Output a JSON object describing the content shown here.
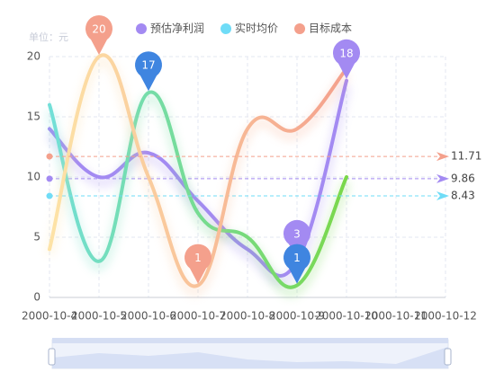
{
  "chart_data": {
    "type": "line",
    "unit_label": "单位：元",
    "categories": [
      "2000-10-4",
      "2000-10-5",
      "2000-10-6",
      "2000-10-7",
      "2000-10-8",
      "2000-10-9",
      "2000-10-10",
      "2000-10-11",
      "2000-10-12"
    ],
    "series": [
      {
        "name": "预估净利润",
        "color": "#a38af2",
        "mark_color": "#a38af2",
        "values": [
          14,
          10,
          12,
          8,
          4,
          3,
          18,
          null,
          null
        ],
        "average": 9.86
      },
      {
        "name": "实时均价",
        "color": "#6fdcf7",
        "mark_color": "#3f85e0",
        "gradient": [
          "#72dfd8",
          "#7ad84a"
        ],
        "values": [
          16,
          3,
          17,
          7,
          5,
          1,
          10,
          null,
          null
        ],
        "average": 8.43
      },
      {
        "name": "目标成本",
        "color": "#f4a08c",
        "mark_color": "#f4a08c",
        "gradient": [
          "#fde3a6",
          "#f4a08c"
        ],
        "values": [
          4,
          20,
          10,
          1,
          14,
          14,
          19,
          null,
          null
        ],
        "average": 11.71
      }
    ],
    "ylim": [
      0,
      20
    ],
    "yticks": [
      0,
      5,
      10,
      15,
      20
    ],
    "grid": true,
    "legend": "top"
  }
}
